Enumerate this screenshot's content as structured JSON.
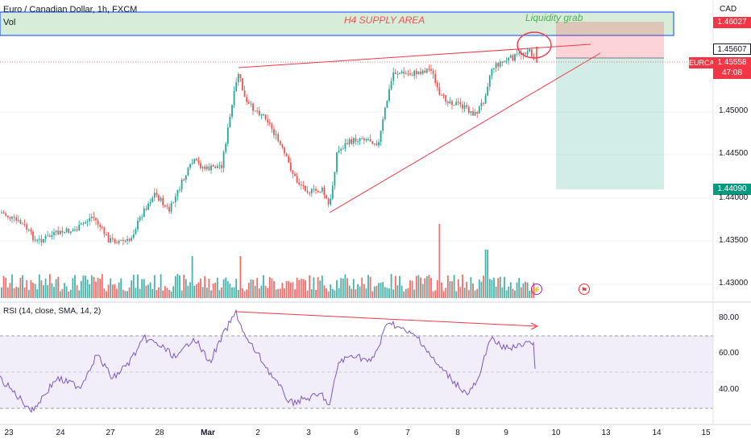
{
  "header": {
    "symbol_title": "Euro / Canadian Dollar, 1h, FXCM",
    "vol_label": "Vol"
  },
  "currency": "CAD",
  "annotations": {
    "supply": "H4 SUPPLY AREA",
    "liquidity": "Liquidity grab"
  },
  "price_tags": {
    "top": "1.46027",
    "high": "1.45607",
    "symbol": "EURCAD",
    "current": "1.45558",
    "countdown": "47:08",
    "target": "1.44090"
  },
  "price_axis": [
    "1.45000",
    "1.44500",
    "1.44000",
    "1.43500",
    "1.43000"
  ],
  "rsi": {
    "title": "RSI (14, close, SMA, 14, 2)",
    "axis": [
      "80.00",
      "60.00",
      "40.00"
    ]
  },
  "time_axis": [
    "23",
    "24",
    "27",
    "28",
    "Mar",
    "2",
    "3",
    "6",
    "7",
    "8",
    "9",
    "10",
    "13",
    "14",
    "15"
  ],
  "colors": {
    "up": "#26a69a",
    "down": "#ef5350",
    "zone": "#4caf50",
    "zone_border": "#2962ff",
    "rsi": "#7e57c2"
  },
  "icons": {
    "lightning": "lightning-icon",
    "flag": "flag-icon"
  }
}
